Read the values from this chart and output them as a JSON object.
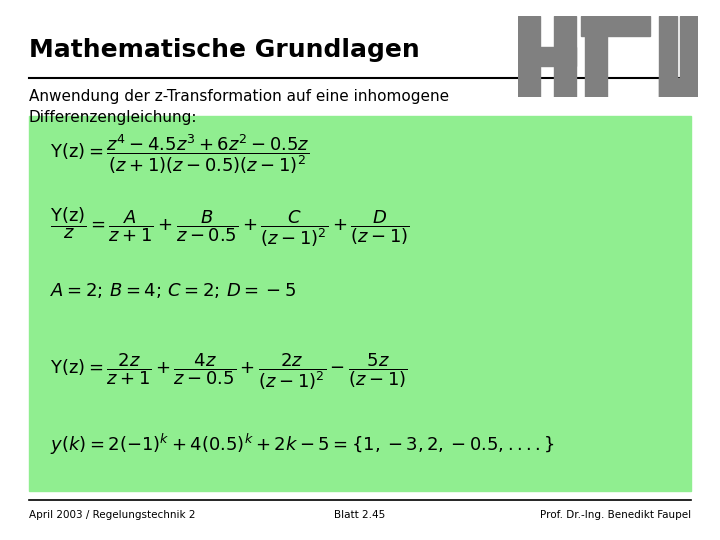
{
  "title": "Mathematische Grundlagen",
  "subtitle": "Anwendung der z-Transformation auf eine inhomogene\nDifferenzengleichung:",
  "bg_color": "#ffffff",
  "green_box_color": "#90ee90",
  "footer_left": "April 2003 / Regelungstechnik 2",
  "footer_center": "Blatt 2.45",
  "footer_right": "Prof. Dr.-Ing. Benedikt Faupel",
  "eq1": "$Y(z) = \\dfrac{z^4 - 4.5z^3 + 6z^2 - 0.5z}{(z+1)(z-0.5)(z-1)^2}$",
  "eq2": "$\\dfrac{Y(z)}{z} = \\dfrac{A}{z+1} + \\dfrac{B}{z-0.5} + \\dfrac{C}{(z-1)^2} + \\dfrac{D}{(z-1)}$",
  "eq3": "$A = 2;\\, B = 4;\\, C = 2;\\, D = -5$",
  "eq4": "$Y(z) = \\dfrac{2z}{z+1} + \\dfrac{4z}{z-0.5} + \\dfrac{2z}{(z-1)^2} - \\dfrac{5z}{(z-1)}$",
  "eq5": "$y(k) = 2(-1)^k + 4(0.5)^k + 2k - 5 = \\{1, -3, 2, -0.5, ....\\}$",
  "htw_logo_color": "#808080"
}
